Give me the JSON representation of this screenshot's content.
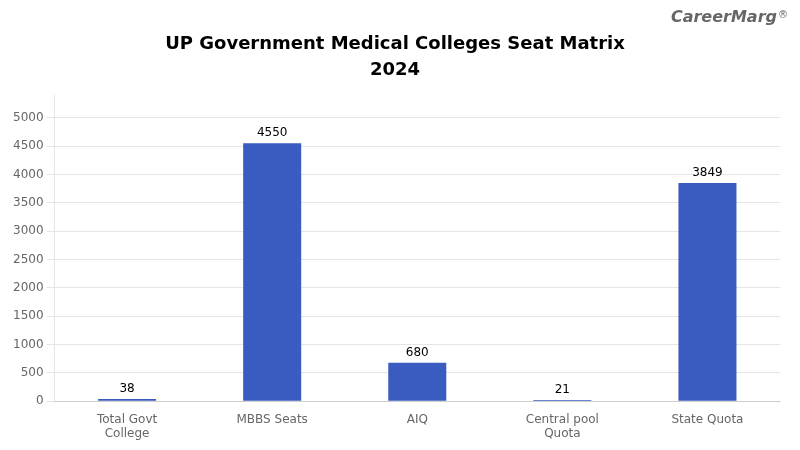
{
  "chart_data": {
    "type": "bar",
    "title": "UP Government Medical Colleges Seat Matrix",
    "subtitle": "2024",
    "categories": [
      "Total Govt\nCollege",
      "MBBS Seats",
      "AIQ",
      "Central pool\nQuota",
      "State Quota"
    ],
    "values": [
      38,
      4550,
      680,
      21,
      3849
    ],
    "color": "#3a5bbf",
    "ylim": [
      0,
      5400
    ],
    "yticks": [
      0,
      500,
      1000,
      1500,
      2000,
      2500,
      3000,
      3500,
      4000,
      4500,
      5000
    ],
    "grid": true,
    "data_labels": true,
    "annotations": [
      "CareerMarg",
      "®"
    ]
  }
}
